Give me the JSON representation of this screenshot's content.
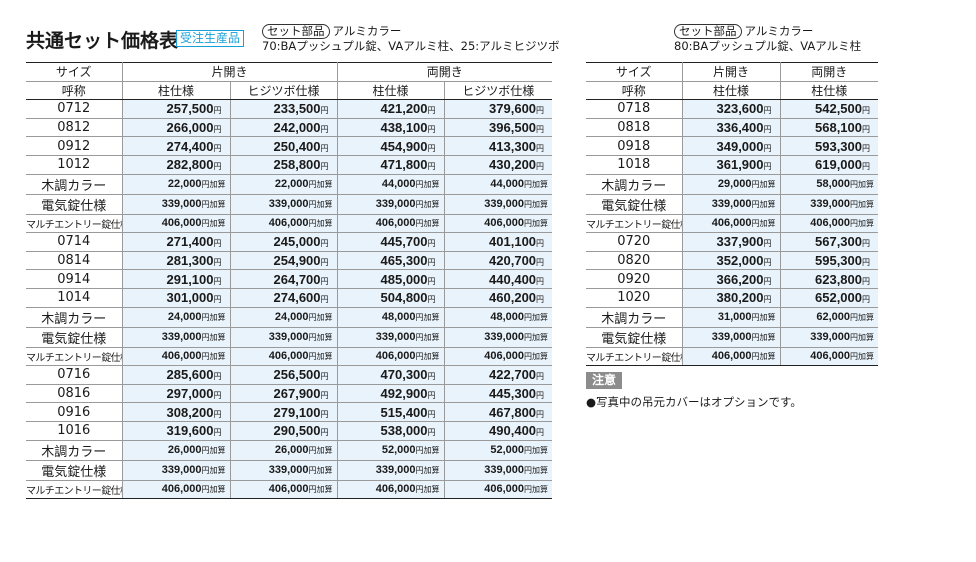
{
  "title": "共通セット価格表",
  "badge": "受注生産品",
  "left": {
    "set_tag": "セット部品",
    "set_color": "アルミカラー",
    "set_parts": "70:BAプッシュプル錠、VAアルミ柱、25:アルミヒジツボ",
    "head_size": "サイズ",
    "head_call": "呼称",
    "group_katabiraki": "片開き",
    "group_ryobiraki": "両開き",
    "col_hashira": "柱仕様",
    "col_hijitsubo": "ヒジツボ仕様",
    "rows": [
      {
        "label": "0712",
        "v": [
          "257,500",
          "233,500",
          "421,200",
          "379,600"
        ],
        "u": "円"
      },
      {
        "label": "0812",
        "v": [
          "266,000",
          "242,000",
          "438,100",
          "396,500"
        ],
        "u": "円"
      },
      {
        "label": "0912",
        "v": [
          "274,400",
          "250,400",
          "454,900",
          "413,300"
        ],
        "u": "円"
      },
      {
        "label": "1012",
        "v": [
          "282,800",
          "258,800",
          "471,800",
          "430,200"
        ],
        "u": "円"
      },
      {
        "label": "木調カラー",
        "v": [
          "22,000",
          "22,000",
          "44,000",
          "44,000"
        ],
        "u": "円加算"
      },
      {
        "label": "電気錠仕様",
        "v": [
          "339,000",
          "339,000",
          "339,000",
          "339,000"
        ],
        "u": "円加算"
      },
      {
        "label": "マルチエントリー錠仕様",
        "v": [
          "406,000",
          "406,000",
          "406,000",
          "406,000"
        ],
        "u": "円加算"
      },
      {
        "label": "0714",
        "v": [
          "271,400",
          "245,000",
          "445,700",
          "401,100"
        ],
        "u": "円"
      },
      {
        "label": "0814",
        "v": [
          "281,300",
          "254,900",
          "465,300",
          "420,700"
        ],
        "u": "円"
      },
      {
        "label": "0914",
        "v": [
          "291,100",
          "264,700",
          "485,000",
          "440,400"
        ],
        "u": "円"
      },
      {
        "label": "1014",
        "v": [
          "301,000",
          "274,600",
          "504,800",
          "460,200"
        ],
        "u": "円"
      },
      {
        "label": "木調カラー",
        "v": [
          "24,000",
          "24,000",
          "48,000",
          "48,000"
        ],
        "u": "円加算"
      },
      {
        "label": "電気錠仕様",
        "v": [
          "339,000",
          "339,000",
          "339,000",
          "339,000"
        ],
        "u": "円加算"
      },
      {
        "label": "マルチエントリー錠仕様",
        "v": [
          "406,000",
          "406,000",
          "406,000",
          "406,000"
        ],
        "u": "円加算"
      },
      {
        "label": "0716",
        "v": [
          "285,600",
          "256,500",
          "470,300",
          "422,700"
        ],
        "u": "円"
      },
      {
        "label": "0816",
        "v": [
          "297,000",
          "267,900",
          "492,900",
          "445,300"
        ],
        "u": "円"
      },
      {
        "label": "0916",
        "v": [
          "308,200",
          "279,100",
          "515,400",
          "467,800"
        ],
        "u": "円"
      },
      {
        "label": "1016",
        "v": [
          "319,600",
          "290,500",
          "538,000",
          "490,400"
        ],
        "u": "円"
      },
      {
        "label": "木調カラー",
        "v": [
          "26,000",
          "26,000",
          "52,000",
          "52,000"
        ],
        "u": "円加算"
      },
      {
        "label": "電気錠仕様",
        "v": [
          "339,000",
          "339,000",
          "339,000",
          "339,000"
        ],
        "u": "円加算"
      },
      {
        "label": "マルチエントリー錠仕様",
        "v": [
          "406,000",
          "406,000",
          "406,000",
          "406,000"
        ],
        "u": "円加算"
      }
    ]
  },
  "right": {
    "set_tag": "セット部品",
    "set_color": "アルミカラー",
    "set_parts": "80:BAプッシュプル錠、VAアルミ柱",
    "head_size": "サイズ",
    "head_call": "呼称",
    "group_katabiraki": "片開き",
    "group_ryobiraki": "両開き",
    "col_hashira": "柱仕様",
    "rows": [
      {
        "label": "0718",
        "v": [
          "323,600",
          "542,500"
        ],
        "u": "円"
      },
      {
        "label": "0818",
        "v": [
          "336,400",
          "568,100"
        ],
        "u": "円"
      },
      {
        "label": "0918",
        "v": [
          "349,000",
          "593,300"
        ],
        "u": "円"
      },
      {
        "label": "1018",
        "v": [
          "361,900",
          "619,000"
        ],
        "u": "円"
      },
      {
        "label": "木調カラー",
        "v": [
          "29,000",
          "58,000"
        ],
        "u": "円加算"
      },
      {
        "label": "電気錠仕様",
        "v": [
          "339,000",
          "339,000"
        ],
        "u": "円加算"
      },
      {
        "label": "マルチエントリー錠仕様",
        "v": [
          "406,000",
          "406,000"
        ],
        "u": "円加算"
      },
      {
        "label": "0720",
        "v": [
          "337,900",
          "567,300"
        ],
        "u": "円"
      },
      {
        "label": "0820",
        "v": [
          "352,000",
          "595,300"
        ],
        "u": "円"
      },
      {
        "label": "0920",
        "v": [
          "366,200",
          "623,800"
        ],
        "u": "円"
      },
      {
        "label": "1020",
        "v": [
          "380,200",
          "652,000"
        ],
        "u": "円"
      },
      {
        "label": "木調カラー",
        "v": [
          "31,000",
          "62,000"
        ],
        "u": "円加算"
      },
      {
        "label": "電気錠仕様",
        "v": [
          "339,000",
          "339,000"
        ],
        "u": "円加算"
      },
      {
        "label": "マルチエントリー錠仕様",
        "v": [
          "406,000",
          "406,000"
        ],
        "u": "円加算"
      }
    ]
  },
  "note_label": "注意",
  "note_text": "●写真中の吊元カバーはオプションです。",
  "colors": {
    "price_bg": "#e9f3fb",
    "badge": "#1aa0d8",
    "note_bg": "#8c8c8c"
  }
}
